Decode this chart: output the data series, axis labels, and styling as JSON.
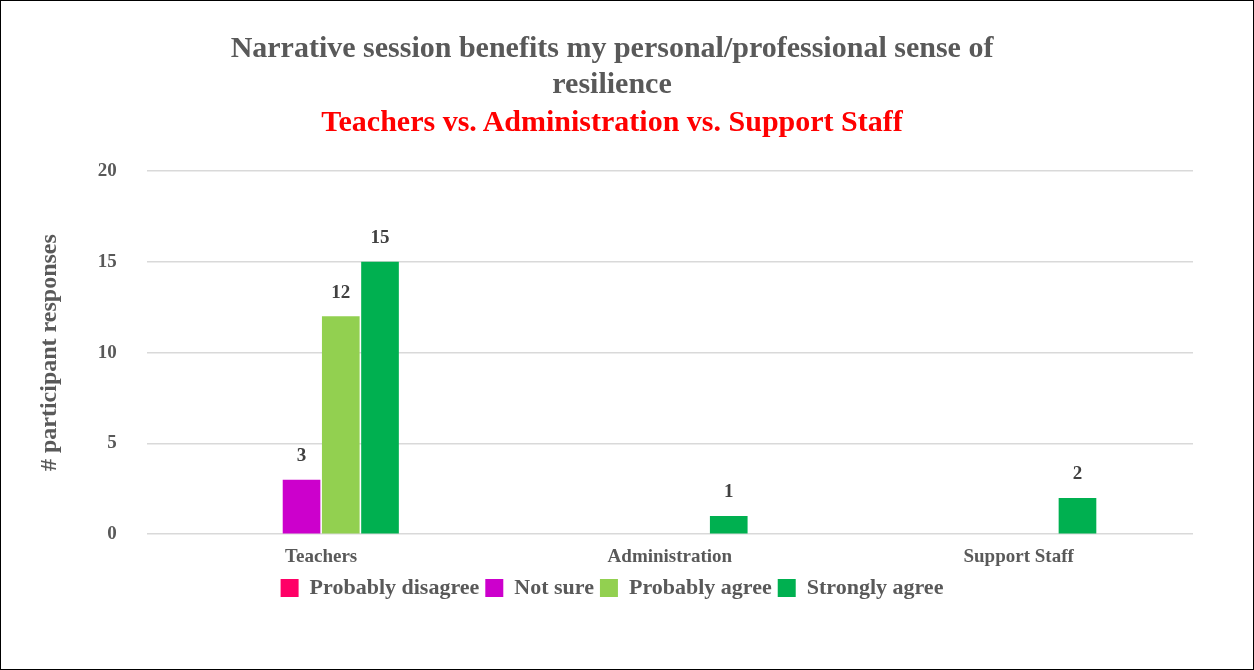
{
  "chart_data": {
    "type": "bar",
    "title": "Narrative session benefits my personal/professional sense of resilience",
    "subtitle": "Teachers vs. Administration vs. Support Staff",
    "ylabel": "# participant responses",
    "categories": [
      "Teachers",
      "Administration",
      "Support Staff"
    ],
    "series": [
      {
        "name": "Probably disagree",
        "color": "#ff0066",
        "values": [
          0,
          0,
          0
        ],
        "value_labels": [
          null,
          null,
          null
        ]
      },
      {
        "name": "Not sure",
        "color": "#cc00cc",
        "values": [
          3,
          0,
          0
        ],
        "value_labels": [
          "3",
          null,
          null
        ]
      },
      {
        "name": "Probably agree",
        "color": "#92d050",
        "values": [
          12,
          0,
          0
        ],
        "value_labels": [
          "12",
          null,
          null
        ]
      },
      {
        "name": "Strongly agree",
        "color": "#00b050",
        "values": [
          15,
          1,
          2
        ],
        "value_labels": [
          "15",
          "1",
          "2"
        ]
      }
    ],
    "ylim": [
      0,
      20
    ],
    "yticks": [
      0,
      5,
      10,
      15,
      20
    ],
    "grid": "y",
    "legend": "bottom"
  }
}
